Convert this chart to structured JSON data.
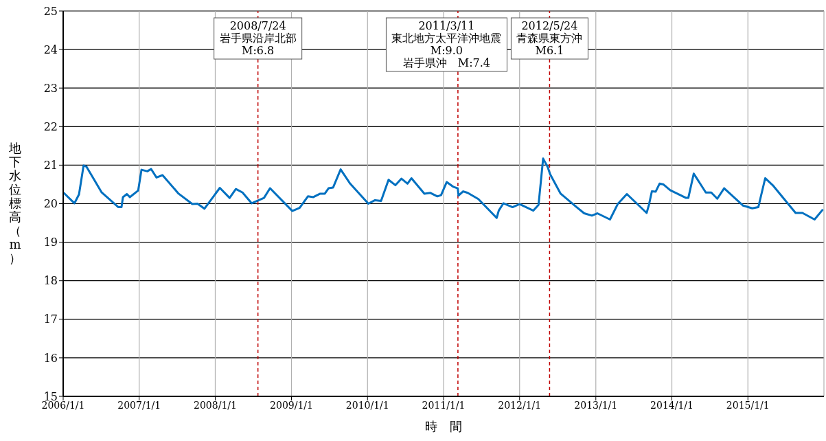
{
  "chart_data": {
    "type": "line",
    "xlabel": "時　間",
    "ylabel": "地下水位標高（m）",
    "xlim": [
      "2006-01-01",
      "2016-01-01"
    ],
    "xticks": [
      {
        "value": "2006-01-01",
        "label": "2006/1/1"
      },
      {
        "value": "2007-01-01",
        "label": "2007/1/1"
      },
      {
        "value": "2008-01-01",
        "label": "2008/1/1"
      },
      {
        "value": "2009-01-01",
        "label": "2009/1/1"
      },
      {
        "value": "2010-01-01",
        "label": "2010/1/1"
      },
      {
        "value": "2011-01-01",
        "label": "2011/1/1"
      },
      {
        "value": "2012-01-01",
        "label": "2012/1/1"
      },
      {
        "value": "2013-01-01",
        "label": "2013/1/1"
      },
      {
        "value": "2014-01-01",
        "label": "2014/1/1"
      },
      {
        "value": "2015-01-01",
        "label": "2015/1/1"
      }
    ],
    "ylim": [
      15,
      25
    ],
    "yticks": [
      15,
      16,
      17,
      18,
      19,
      20,
      21,
      22,
      23,
      24,
      25
    ],
    "grid": true,
    "marker": "none",
    "line_style": "solid",
    "x": [
      "2006-01-02",
      "2006-02-24",
      "2006-03-18",
      "2006-04-09",
      "2006-04-23",
      "2006-07-05",
      "2006-09-23",
      "2006-10-08",
      "2006-10-15",
      "2006-11-03",
      "2006-11-17",
      "2006-12-27",
      "2007-01-12",
      "2007-02-09",
      "2007-02-27",
      "2007-03-25",
      "2007-04-23",
      "2007-07-09",
      "2007-09-13",
      "2007-10-08",
      "2007-11-10",
      "2007-12-24",
      "2008-01-23",
      "2008-03-10",
      "2008-04-09",
      "2008-05-11",
      "2008-06-24",
      "2008-08-22",
      "2008-09-20",
      "2009-01-05",
      "2009-02-09",
      "2009-03-21",
      "2009-04-16",
      "2009-05-19",
      "2009-06-10",
      "2009-06-28",
      "2009-07-20",
      "2009-08-25",
      "2009-10-08",
      "2010-01-05",
      "2010-02-06",
      "2010-03-07",
      "2010-04-12",
      "2010-05-15",
      "2010-06-13",
      "2010-07-12",
      "2010-07-31",
      "2010-10-01",
      "2010-10-30",
      "2010-12-02",
      "2010-12-20",
      "2011-01-16",
      "2011-02-16",
      "2011-03-10",
      "2011-03-14",
      "2011-04-05",
      "2011-04-27",
      "2011-06-17",
      "2011-09-13",
      "2011-09-23",
      "2011-10-15",
      "2011-11-28",
      "2012-01-01",
      "2012-03-07",
      "2012-04-01",
      "2012-04-23",
      "2012-05-15",
      "2012-05-26",
      "2012-07-16",
      "2012-10-01",
      "2012-11-06",
      "2012-12-13",
      "2013-01-08",
      "2013-03-10",
      "2013-04-16",
      "2013-05-30",
      "2013-09-02",
      "2013-09-13",
      "2013-09-27",
      "2013-10-15",
      "2013-11-03",
      "2013-11-21",
      "2013-12-24",
      "2014-03-10",
      "2014-03-21",
      "2014-04-16",
      "2014-06-13",
      "2014-07-09",
      "2014-08-07",
      "2014-09-09",
      "2014-12-09",
      "2015-01-22",
      "2015-02-20",
      "2015-03-25",
      "2015-04-30",
      "2015-08-18",
      "2015-09-20",
      "2015-11-17",
      "2015-12-27"
    ],
    "series": [
      {
        "color": "#0070c0",
        "values": [
          20.29,
          20.01,
          20.24,
          20.99,
          20.96,
          20.29,
          19.91,
          19.91,
          20.17,
          20.25,
          20.17,
          20.34,
          20.88,
          20.84,
          20.9,
          20.68,
          20.74,
          20.26,
          19.99,
          20.0,
          19.87,
          20.19,
          20.41,
          20.15,
          20.38,
          20.29,
          20.01,
          20.15,
          20.4,
          19.81,
          19.89,
          20.19,
          20.17,
          20.26,
          20.26,
          20.4,
          20.42,
          20.89,
          20.53,
          20.0,
          20.09,
          20.07,
          20.62,
          20.48,
          20.65,
          20.52,
          20.66,
          20.26,
          20.28,
          20.19,
          20.22,
          20.56,
          20.44,
          20.4,
          20.21,
          20.32,
          20.28,
          20.12,
          19.63,
          19.82,
          20.01,
          19.91,
          19.99,
          19.82,
          19.97,
          21.17,
          20.95,
          20.77,
          20.26,
          19.91,
          19.75,
          19.69,
          19.75,
          19.59,
          19.99,
          20.25,
          19.76,
          19.97,
          20.32,
          20.31,
          20.52,
          20.5,
          20.35,
          20.15,
          20.15,
          20.78,
          20.29,
          20.29,
          20.13,
          20.4,
          19.95,
          19.88,
          19.91,
          20.66,
          20.48,
          19.76,
          19.76,
          19.59,
          19.85
        ]
      }
    ],
    "ref_lines": [
      {
        "axis": "x",
        "value": "2008-07-24",
        "label": "2008/7/24\n岩手県沿岸北部\nM:6.8",
        "color": "#c00000",
        "line_style": "dashed"
      },
      {
        "axis": "x",
        "value": "2011-03-11",
        "label": "2011/3/11\n東北地方太平洋沖地震\nM:9.0\n岩手県沖　M:7.4",
        "color": "#c00000",
        "line_style": "dashed"
      },
      {
        "axis": "x",
        "value": "2012-05-24",
        "label": "2012/5/24\n青森県東方沖\nM6.1",
        "color": "#c00000",
        "line_style": "dashed"
      }
    ]
  }
}
